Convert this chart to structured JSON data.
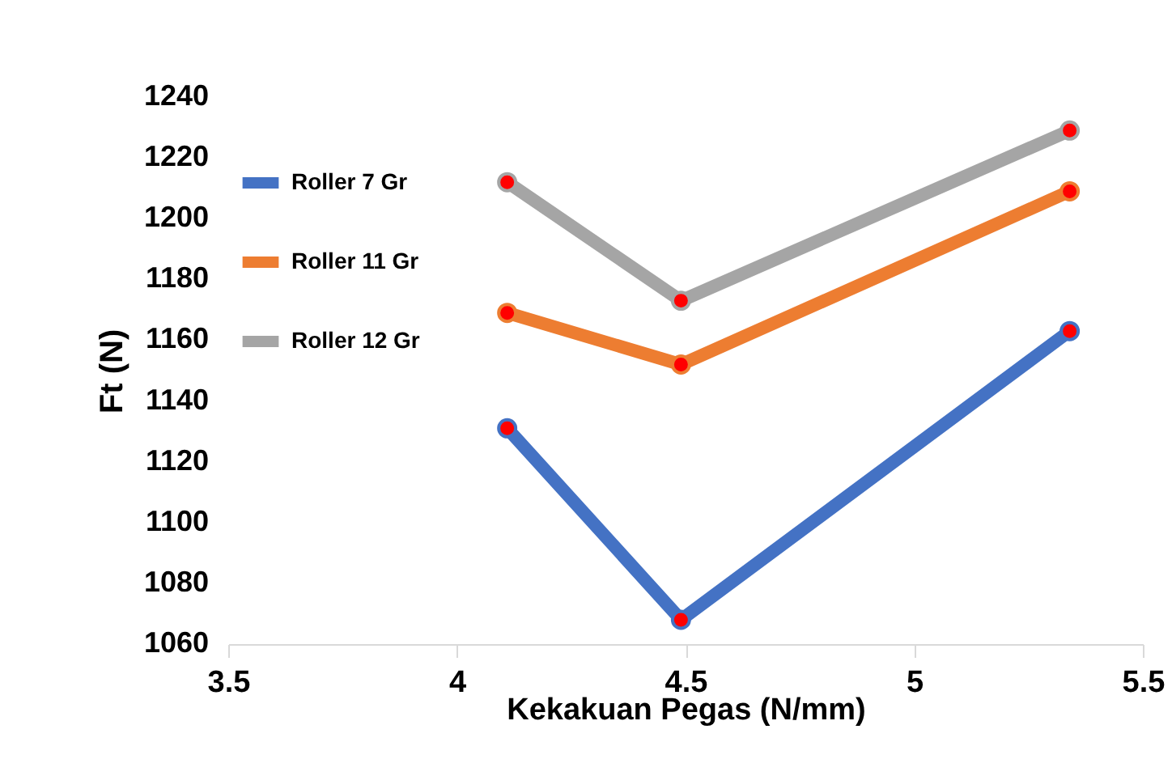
{
  "chart_data": {
    "type": "line",
    "xlabel": "Kekakuan Pegas (N/mm)",
    "ylabel": "Ft (N)",
    "x": [
      4.11,
      4.49,
      5.34
    ],
    "series": [
      {
        "name": "Roller 7 Gr",
        "color": "#4472c4",
        "values": [
          1131,
          1068,
          1163
        ]
      },
      {
        "name": "Roller 11 Gr",
        "color": "#ed7d31",
        "values": [
          1169,
          1152,
          1209
        ]
      },
      {
        "name": "Roller 12 Gr",
        "color": "#a5a5a5",
        "values": [
          1212,
          1173,
          1229
        ]
      }
    ],
    "xlim": [
      3.5,
      5.5
    ],
    "xticks": [
      3.5,
      4,
      4.5,
      5,
      5.5
    ],
    "ylim": [
      1060,
      1240
    ],
    "yticks": [
      1060,
      1080,
      1100,
      1120,
      1140,
      1160,
      1180,
      1200,
      1220,
      1240
    ],
    "grid": false,
    "legend": "top left",
    "marker": "circle",
    "line_style": "solid"
  }
}
